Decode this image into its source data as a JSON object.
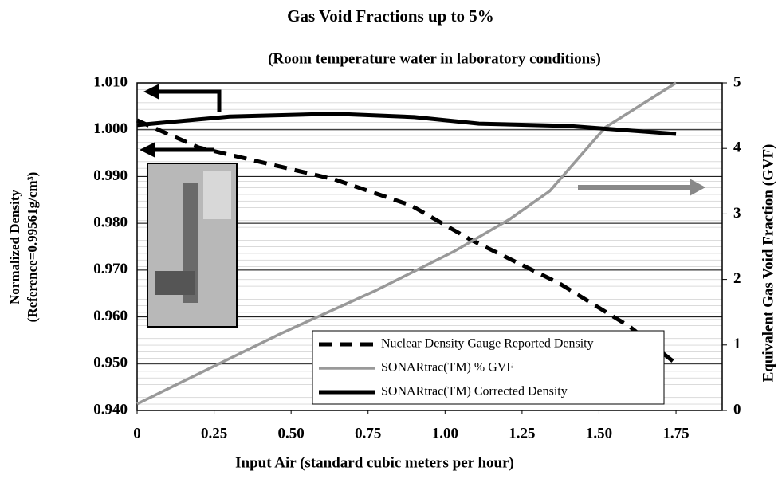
{
  "chart_data": {
    "type": "line",
    "title": "Gas Void Fractions up to 5%",
    "subtitle": "(Room temperature water in laboratory conditions)",
    "xlabel": "Input Air (standard cubic meters per hour)",
    "ylabel": [
      "Normalized Density",
      "(Reference=0.99561g/cm³)"
    ],
    "y2label": "Equivalent Gas Void Fraction (GVF)",
    "xlim": [
      0,
      1.9
    ],
    "xticks": [
      0,
      0.25,
      {
        "value": 0.5,
        "label": "0.50"
      },
      0.75,
      {
        "value": 1,
        "label": "1.00"
      },
      1.25,
      {
        "value": 1.5,
        "label": "1.50"
      },
      1.75
    ],
    "ylim": [
      0.94,
      1.01
    ],
    "yticks": [
      {
        "value": 0.94,
        "label": "0.940"
      },
      {
        "value": 0.95,
        "label": "0.950"
      },
      {
        "value": 0.96,
        "label": "0.960"
      },
      {
        "value": 0.97,
        "label": "0.970"
      },
      {
        "value": 0.98,
        "label": "0.980"
      },
      {
        "value": 0.99,
        "label": "0.990"
      },
      {
        "value": 1,
        "label": "1.000"
      },
      {
        "value": 1.01,
        "label": "1.010"
      }
    ],
    "y2lim": [
      0,
      5
    ],
    "y2ticks": [
      0,
      1,
      2,
      3,
      4,
      5
    ],
    "grid": true,
    "legend": "lower right",
    "series": [
      {
        "name": "Nuclear Density Gauge Reported Density",
        "color": "#000000",
        "dashed": true,
        "x": [
          0,
          0.2,
          0.64,
          0.89,
          1.08,
          1.37,
          1.6,
          1.75
        ],
        "values": [
          1.002,
          0.9962,
          0.9894,
          0.9838,
          0.9766,
          0.9672,
          0.9579,
          0.95
        ]
      },
      {
        "name": "SONARtrac(TM) % GVF",
        "color": "#999999",
        "axis": "y2",
        "x": [
          0,
          0.46,
          0.77,
          1.03,
          1.21,
          1.34,
          1.52,
          1.75
        ],
        "values": [
          0.1,
          1.16,
          1.82,
          2.43,
          2.92,
          3.35,
          4.32,
          5
        ]
      },
      {
        "name": "SONARtrac(TM) Corrected Density",
        "color": "#000000",
        "x": [
          0,
          0.3,
          0.64,
          0.9,
          1.11,
          1.4,
          1.75
        ],
        "values": [
          1.001,
          1.0028,
          1.0034,
          1.0027,
          1.0013,
          1.0008,
          0.9991
        ]
      }
    ]
  }
}
